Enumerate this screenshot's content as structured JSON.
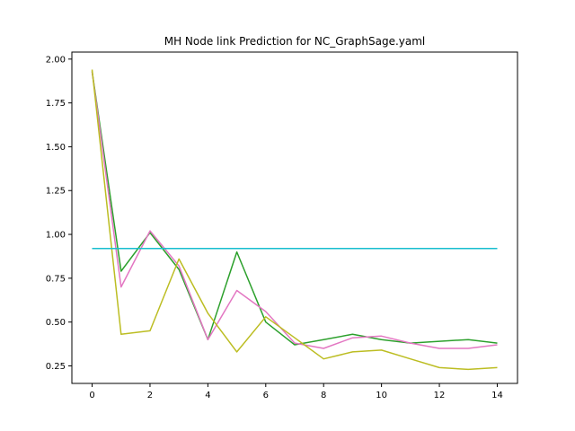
{
  "chart_data": {
    "type": "line",
    "title": "MH Node link Prediction for NC_GraphSage.yaml",
    "xlabel": "",
    "ylabel": "",
    "xlim": [
      -0.7,
      14.7
    ],
    "ylim": [
      0.15,
      2.04
    ],
    "xticks": [
      0,
      2,
      4,
      6,
      8,
      10,
      12,
      14
    ],
    "yticks": [
      0.25,
      0.5,
      0.75,
      1.0,
      1.25,
      1.5,
      1.75,
      2.0
    ],
    "xtick_labels": [
      "0",
      "2",
      "4",
      "6",
      "8",
      "10",
      "12",
      "14"
    ],
    "ytick_labels": [
      "0.25",
      "0.50",
      "0.75",
      "1.00",
      "1.25",
      "1.50",
      "1.75",
      "2.00"
    ],
    "grid": false,
    "x": [
      0,
      1,
      2,
      3,
      4,
      5,
      6,
      7,
      8,
      9,
      10,
      11,
      12,
      13,
      14
    ],
    "series": [
      {
        "color": "#2ca02c",
        "values": [
          1.93,
          0.79,
          1.01,
          0.8,
          0.4,
          0.9,
          0.5,
          0.37,
          0.4,
          0.43,
          0.4,
          0.38,
          0.39,
          0.4,
          0.38
        ]
      },
      {
        "color": "#e377c2",
        "values": [
          1.93,
          0.7,
          1.02,
          0.82,
          0.4,
          0.68,
          0.56,
          0.38,
          0.35,
          0.41,
          0.42,
          0.38,
          0.35,
          0.35,
          0.37
        ]
      },
      {
        "color": "#bcbd22",
        "values": [
          1.94,
          0.43,
          0.45,
          0.86,
          0.55,
          0.33,
          0.53,
          0.41,
          0.29,
          0.33,
          0.34,
          0.29,
          0.24,
          0.23,
          0.24
        ]
      },
      {
        "color": "#17becf",
        "values": [
          0.92,
          0.92,
          0.92,
          0.92,
          0.92,
          0.92,
          0.92,
          0.92,
          0.92,
          0.92,
          0.92,
          0.92,
          0.92,
          0.92,
          0.92
        ]
      }
    ]
  }
}
